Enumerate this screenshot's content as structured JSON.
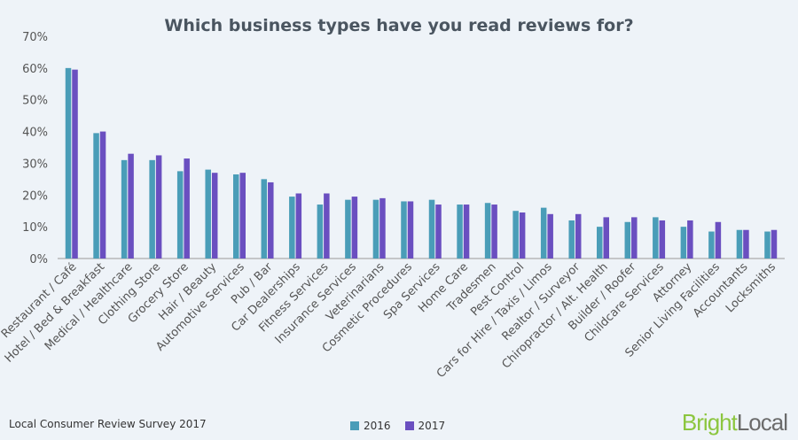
{
  "chart_data": {
    "type": "bar",
    "title": "Which business types have you read reviews for?",
    "categories": [
      "Restaurant / Café",
      "Hotel / Bed & Breakfast",
      "Medical / Healthcare",
      "Clothing Store",
      "Grocery Store",
      "Hair / Beauty",
      "Automotive Services",
      "Pub / Bar",
      "Car Dealerships",
      "Fitness Services",
      "Insurance Services",
      "Veterinarians",
      "Cosmetic Procedures",
      "Spa Services",
      "Home Care",
      "Tradesmen",
      "Pest Control",
      "Cars for Hire / Taxis / Limos",
      "Realtor / Surveyor",
      "Chiropractor / Alt. Health",
      "Builder / Roofer",
      "Childcare Services",
      "Attorney",
      "Senior Living Facilities",
      "Accountants",
      "Locksmiths"
    ],
    "series": [
      {
        "name": "2016",
        "color": "#4a9db8",
        "values": [
          60,
          39.5,
          31,
          31,
          27.5,
          28,
          26.5,
          25,
          19.5,
          17,
          18.5,
          18.5,
          18,
          18.5,
          17,
          17.5,
          15,
          16,
          12,
          10,
          11.5,
          13,
          10,
          8.5,
          9,
          8.5
        ]
      },
      {
        "name": "2017",
        "color": "#6a4fc0",
        "values": [
          59.5,
          40,
          33,
          32.5,
          31.5,
          27,
          27,
          24,
          20.5,
          20.5,
          19.5,
          19,
          18,
          17,
          17,
          17,
          14.5,
          14,
          14,
          13,
          13,
          12,
          12,
          11.5,
          9,
          9
        ]
      }
    ],
    "yticks": [
      "0%",
      "10%",
      "20%",
      "30%",
      "40%",
      "50%",
      "60%",
      "70%"
    ],
    "ylim": [
      0,
      70
    ],
    "grid": false,
    "legend_position": "bottom-center"
  },
  "footer": {
    "source": "Local Consumer Review Survey 2017",
    "brand_part1": "Bright",
    "brand_part2": "Local"
  }
}
